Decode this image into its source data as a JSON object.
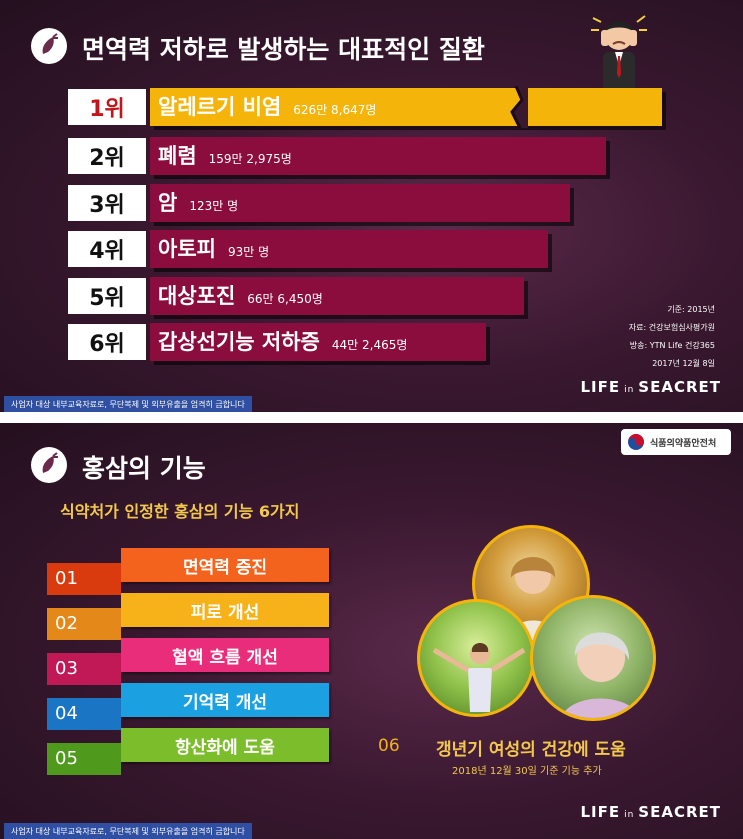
{
  "slide1": {
    "title": "면역력 저하로 발생하는 대표적인 질환",
    "icon": "ginseng-icon",
    "ranks": [
      {
        "rank": "1위",
        "disease": "알레르기 비염",
        "count": "626만 8,647명"
      },
      {
        "rank": "2위",
        "disease": "폐렴",
        "count": "159만 2,975명"
      },
      {
        "rank": "3위",
        "disease": "암",
        "count": "123만 명"
      },
      {
        "rank": "4위",
        "disease": "아토피",
        "count": "93만 명"
      },
      {
        "rank": "5위",
        "disease": "대상포진",
        "count": "66만 6,450명"
      },
      {
        "rank": "6위",
        "disease": "갑상선기능 저하증",
        "count": "44만 2,465명"
      }
    ],
    "source": {
      "basis": "기준: 2015년",
      "data": "자료: 건강보험심사평가원",
      "broadcast": "방송: YTN Life 건강365",
      "date": "2017년 12월 8일"
    },
    "notice": "사업자 대상 내부교육자료로, 무단복제 및 외부유출을 엄격히 금합니다",
    "logo_left": "LIFE",
    "logo_mid": "in",
    "logo_right": "SEACRET",
    "colors": {
      "first_bar": "#f4b40a",
      "bars": "#8a0d3e"
    }
  },
  "slide2": {
    "title": "홍삼의 기능",
    "icon": "ginseng-icon",
    "badge": "식품의약품안전처",
    "subtitle": "식약처가 인정한 홍삼의 기능 6가지",
    "functions": [
      {
        "num": "01",
        "label": "면역력 증진",
        "color": "#f3631d",
        "dark": "#d93a0e"
      },
      {
        "num": "02",
        "label": "피로 개선",
        "color": "#f7b21a",
        "dark": "#e4881a"
      },
      {
        "num": "03",
        "label": "혈액 흐름 개선",
        "color": "#ea2d7a",
        "dark": "#c11955"
      },
      {
        "num": "04",
        "label": "기억력 개선",
        "color": "#1ba1e2",
        "dark": "#1a76c4"
      },
      {
        "num": "05",
        "label": "항산화에 도움",
        "color": "#7cbd2b",
        "dark": "#4f9a1c"
      }
    ],
    "sixth": {
      "num": "06",
      "label": "갱년기 여성의 건강에 도움",
      "note": "2018년 12월 30일 기준 기능 추가"
    },
    "notice": "사업자 대상 내부교육자료로, 무단복제 및 외부유출을 엄격히 금합니다",
    "logo_left": "LIFE",
    "logo_mid": "in",
    "logo_right": "SEACRET"
  }
}
